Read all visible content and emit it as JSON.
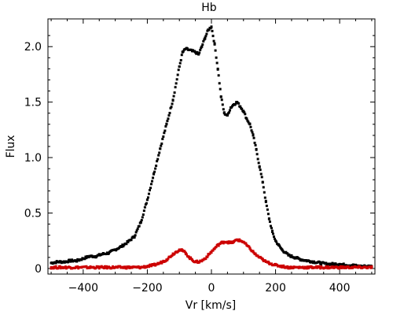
{
  "chart_data": {
    "type": "scatter",
    "title": "Hb",
    "xlabel": "Vr [km/s]",
    "ylabel": "Flux",
    "xlim": [
      -510,
      510
    ],
    "ylim": [
      -0.05,
      2.25
    ],
    "xticks": [
      -400,
      -200,
      0,
      200,
      400
    ],
    "xtick_labels": [
      "−400",
      "−200",
      "0",
      "200",
      "400"
    ],
    "yticks": [
      0,
      0.5,
      1.0,
      1.5,
      2.0
    ],
    "ytick_labels": [
      "0",
      "0.5",
      "1.0",
      "1.5",
      "2.0"
    ],
    "grid": false,
    "legend": "none",
    "series": [
      {
        "color": "#000000",
        "x": [
          -500,
          -480,
          -460,
          -440,
          -420,
          -400,
          -380,
          -360,
          -340,
          -320,
          -300,
          -280,
          -260,
          -240,
          -220,
          -200,
          -180,
          -160,
          -140,
          -120,
          -100,
          -90,
          -80,
          -70,
          -60,
          -50,
          -40,
          -30,
          -20,
          -10,
          0,
          10,
          20,
          30,
          40,
          50,
          60,
          70,
          80,
          90,
          100,
          110,
          120,
          130,
          140,
          150,
          160,
          170,
          180,
          190,
          200,
          210,
          220,
          240,
          260,
          280,
          300,
          320,
          340,
          360,
          380,
          400,
          420,
          440,
          460,
          480,
          500
        ],
        "y": [
          0.05,
          0.06,
          0.06,
          0.07,
          0.07,
          0.09,
          0.11,
          0.11,
          0.13,
          0.14,
          0.17,
          0.2,
          0.24,
          0.29,
          0.42,
          0.62,
          0.85,
          1.08,
          1.3,
          1.52,
          1.82,
          1.95,
          1.98,
          1.97,
          1.96,
          1.95,
          1.93,
          2.0,
          2.08,
          2.15,
          2.18,
          2.02,
          1.8,
          1.55,
          1.4,
          1.38,
          1.45,
          1.48,
          1.5,
          1.46,
          1.42,
          1.35,
          1.3,
          1.2,
          1.07,
          0.92,
          0.78,
          0.6,
          0.45,
          0.33,
          0.25,
          0.21,
          0.17,
          0.12,
          0.1,
          0.08,
          0.07,
          0.06,
          0.05,
          0.04,
          0.04,
          0.04,
          0.03,
          0.03,
          0.02,
          0.02,
          0.02
        ]
      },
      {
        "color": "#cc0000",
        "x": [
          -500,
          -460,
          -420,
          -380,
          -340,
          -300,
          -260,
          -220,
          -200,
          -180,
          -160,
          -140,
          -120,
          -110,
          -100,
          -90,
          -80,
          -70,
          -60,
          -50,
          -40,
          -30,
          -20,
          -10,
          0,
          10,
          20,
          30,
          40,
          50,
          60,
          70,
          80,
          90,
          100,
          110,
          120,
          130,
          140,
          150,
          160,
          170,
          180,
          200,
          220,
          240,
          280,
          320,
          360,
          400,
          440,
          480,
          500
        ],
        "y": [
          0.01,
          0.01,
          0.01,
          0.01,
          0.01,
          0.01,
          0.01,
          0.01,
          0.02,
          0.03,
          0.05,
          0.08,
          0.13,
          0.15,
          0.17,
          0.16,
          0.14,
          0.1,
          0.08,
          0.06,
          0.06,
          0.07,
          0.09,
          0.12,
          0.15,
          0.18,
          0.21,
          0.23,
          0.24,
          0.24,
          0.23,
          0.24,
          0.26,
          0.25,
          0.24,
          0.21,
          0.18,
          0.15,
          0.12,
          0.1,
          0.08,
          0.06,
          0.05,
          0.03,
          0.02,
          0.01,
          0.01,
          0.01,
          0.01,
          0.01,
          0.01,
          0.01,
          0.01
        ]
      }
    ]
  }
}
